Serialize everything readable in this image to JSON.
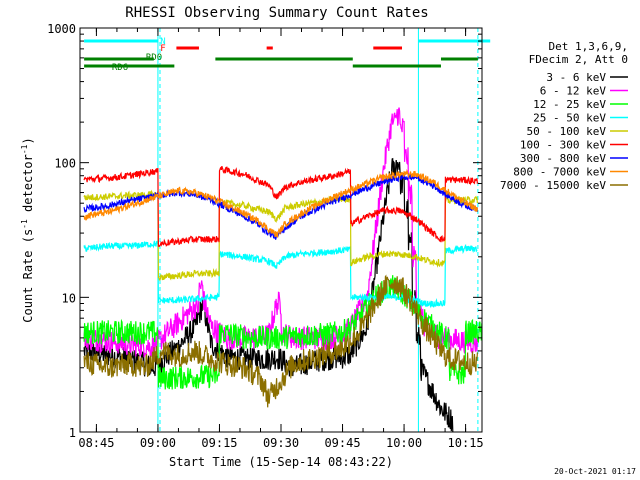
{
  "chart_data": {
    "type": "line",
    "title": "RHESSI Observing Summary Count Rates",
    "xlabel": "Start Time (15-Sep-14 08:43:22)",
    "ylabel_main": "Count Rate (s",
    "ylabel_sup1": "-1",
    "ylabel_mid": " detector",
    "ylabel_sup2": "-1",
    "ylabel_end": ")",
    "yscale": "log",
    "ylim": [
      1,
      1000
    ],
    "xlim_minutes": [
      -2,
      96
    ],
    "x_ticks": [
      {
        "label": "08:45",
        "minute": 2
      },
      {
        "label": "09:00",
        "minute": 17
      },
      {
        "label": "09:15",
        "minute": 32
      },
      {
        "label": "09:30",
        "minute": 47
      },
      {
        "label": "09:45",
        "minute": 62
      },
      {
        "label": "10:00",
        "minute": 77
      },
      {
        "label": "10:15",
        "minute": 92
      }
    ],
    "y_ticks": [
      {
        "label": "1",
        "value": 1
      },
      {
        "label": "10",
        "value": 10
      },
      {
        "label": "100",
        "value": 100
      },
      {
        "label": "1000",
        "value": 1000
      }
    ],
    "footer_date": "20-Oct-2021 01:17",
    "legend_header": [
      "Det 1,3,6,9,",
      "FDecim 2, Att 0"
    ],
    "flag_labels": {
      "night": "N",
      "flare": "F",
      "rd0": "RD0",
      "rd6": "RD6"
    },
    "flag_bars": {
      "night": [
        [
          -1,
          17
        ],
        [
          80.5,
          98
        ]
      ],
      "flare": [
        [
          21.5,
          27
        ],
        [
          43.5,
          45
        ],
        [
          69.5,
          76.5
        ]
      ],
      "rd0": [
        [
          -1,
          16
        ],
        [
          31,
          64.5
        ],
        [
          86,
          95
        ]
      ],
      "rd6": [
        [
          -1,
          21
        ],
        [
          64.5,
          86
        ]
      ]
    },
    "night_lines": [
      17,
      80.5
    ],
    "saa_lines": [
      17.5,
      95
    ],
    "series": [
      {
        "name": "3 - 6 keV",
        "color": "#000000",
        "points": [
          [
            -1,
            4
          ],
          [
            10,
            3.5
          ],
          [
            16,
            3
          ],
          [
            18,
            3.4
          ],
          [
            22,
            4.3
          ],
          [
            26,
            6
          ],
          [
            28,
            9
          ],
          [
            30,
            4.5
          ],
          [
            34,
            3.6
          ],
          [
            40,
            3.5
          ],
          [
            44,
            3.5
          ],
          [
            46,
            3.6
          ],
          [
            50,
            3
          ],
          [
            54,
            3.3
          ],
          [
            58,
            3.5
          ],
          [
            62,
            3.6
          ],
          [
            64,
            3.8
          ],
          [
            68,
            6
          ],
          [
            70,
            15
          ],
          [
            72,
            40
          ],
          [
            74,
            90
          ],
          [
            75,
            100
          ],
          [
            76,
            70
          ],
          [
            77,
            45
          ],
          [
            78,
            25
          ],
          [
            79,
            10
          ],
          [
            80,
            5
          ],
          [
            81,
            3
          ],
          [
            84,
            2
          ],
          [
            86,
            1.5
          ],
          [
            89,
            1.2
          ]
        ]
      },
      {
        "name": "6 - 12 keV",
        "color": "#ff00ff",
        "points": [
          [
            -1,
            5
          ],
          [
            10,
            4.5
          ],
          [
            16,
            4.3
          ],
          [
            18,
            5
          ],
          [
            22,
            6.5
          ],
          [
            26,
            8.5
          ],
          [
            27,
            12
          ],
          [
            28,
            10
          ],
          [
            30,
            6
          ],
          [
            34,
            5
          ],
          [
            40,
            5
          ],
          [
            44,
            5.2
          ],
          [
            46,
            9
          ],
          [
            47,
            5.5
          ],
          [
            50,
            5
          ],
          [
            58,
            5
          ],
          [
            62,
            5.2
          ],
          [
            64,
            6
          ],
          [
            68,
            10
          ],
          [
            70,
            30
          ],
          [
            72,
            90
          ],
          [
            74,
            200
          ],
          [
            75,
            230
          ],
          [
            76,
            180
          ],
          [
            77,
            110
          ],
          [
            78,
            60
          ],
          [
            79,
            20
          ],
          [
            80,
            10
          ],
          [
            82,
            6
          ],
          [
            86,
            5
          ],
          [
            92,
            4.7
          ],
          [
            95,
            4.6
          ]
        ]
      },
      {
        "name": "12 - 25 keV",
        "color": "#00ff00",
        "points": [
          [
            -1,
            5.5
          ],
          [
            16,
            5.5
          ],
          [
            17,
            2.5
          ],
          [
            31,
            2.6
          ],
          [
            32,
            5.5
          ],
          [
            40,
            5
          ],
          [
            46,
            5
          ],
          [
            52,
            5.2
          ],
          [
            58,
            5.3
          ],
          [
            62,
            5.5
          ],
          [
            64,
            6
          ],
          [
            66,
            7
          ],
          [
            68,
            8.5
          ],
          [
            70,
            10
          ],
          [
            72,
            11
          ],
          [
            74,
            12
          ],
          [
            76,
            11
          ],
          [
            78,
            10
          ],
          [
            80,
            8
          ],
          [
            84,
            6
          ],
          [
            87,
            5
          ],
          [
            88,
            2.8
          ],
          [
            91,
            2.7
          ],
          [
            92,
            5.5
          ],
          [
            96,
            5.5
          ]
        ]
      },
      {
        "name": "25 - 50 keV",
        "color": "#00ffff",
        "points": [
          [
            -1,
            23
          ],
          [
            5,
            24
          ],
          [
            10,
            24
          ],
          [
            16,
            25
          ],
          [
            17,
            9.5
          ],
          [
            22,
            9.5
          ],
          [
            31,
            10
          ],
          [
            32,
            21
          ],
          [
            38,
            20
          ],
          [
            44,
            18.5
          ],
          [
            46,
            17
          ],
          [
            48,
            20
          ],
          [
            52,
            21
          ],
          [
            56,
            21.5
          ],
          [
            60,
            22
          ],
          [
            63,
            22.5
          ],
          [
            64,
            10
          ],
          [
            70,
            10
          ],
          [
            76,
            10
          ],
          [
            80,
            9.5
          ],
          [
            82,
            9
          ],
          [
            86,
            9
          ],
          [
            87,
            22
          ],
          [
            92,
            23
          ],
          [
            95,
            23
          ]
        ]
      },
      {
        "name": "50 - 100 keV",
        "color": "#cccc00",
        "points": [
          [
            -1,
            55
          ],
          [
            5,
            56
          ],
          [
            10,
            57
          ],
          [
            16,
            58
          ],
          [
            17,
            14
          ],
          [
            22,
            14.5
          ],
          [
            26,
            15
          ],
          [
            31,
            15
          ],
          [
            32,
            51
          ],
          [
            38,
            48
          ],
          [
            44,
            43
          ],
          [
            46,
            38
          ],
          [
            48,
            46
          ],
          [
            52,
            49
          ],
          [
            56,
            51
          ],
          [
            60,
            53
          ],
          [
            63,
            54
          ],
          [
            64,
            18
          ],
          [
            68,
            20
          ],
          [
            72,
            21
          ],
          [
            76,
            21
          ],
          [
            80,
            20
          ],
          [
            82,
            19
          ],
          [
            86,
            18
          ],
          [
            87,
            52
          ],
          [
            92,
            53
          ],
          [
            95,
            53
          ]
        ]
      },
      {
        "name": "100 - 300 keV",
        "color": "#ff0000",
        "points": [
          [
            -1,
            75
          ],
          [
            5,
            77
          ],
          [
            10,
            80
          ],
          [
            16,
            86
          ],
          [
            17,
            25
          ],
          [
            22,
            26
          ],
          [
            26,
            27
          ],
          [
            31,
            27
          ],
          [
            32,
            90
          ],
          [
            38,
            82
          ],
          [
            44,
            68
          ],
          [
            46,
            55
          ],
          [
            48,
            66
          ],
          [
            52,
            72
          ],
          [
            56,
            76
          ],
          [
            60,
            80
          ],
          [
            63,
            85
          ],
          [
            64,
            35
          ],
          [
            68,
            40
          ],
          [
            72,
            44
          ],
          [
            76,
            44
          ],
          [
            80,
            38
          ],
          [
            84,
            30
          ],
          [
            86,
            27
          ],
          [
            87,
            75
          ],
          [
            92,
            74
          ],
          [
            95,
            73
          ]
        ]
      },
      {
        "name": "300 - 800 keV",
        "color": "#0000ff",
        "points": [
          [
            -1,
            45
          ],
          [
            5,
            48
          ],
          [
            10,
            52
          ],
          [
            16,
            56
          ],
          [
            22,
            60
          ],
          [
            26,
            58
          ],
          [
            30,
            53
          ],
          [
            34,
            46
          ],
          [
            38,
            40
          ],
          [
            42,
            34
          ],
          [
            44,
            30
          ],
          [
            46,
            28
          ],
          [
            48,
            33
          ],
          [
            52,
            40
          ],
          [
            56,
            46
          ],
          [
            60,
            52
          ],
          [
            64,
            58
          ],
          [
            68,
            65
          ],
          [
            72,
            72
          ],
          [
            76,
            78
          ],
          [
            80,
            78
          ],
          [
            84,
            68
          ],
          [
            88,
            56
          ],
          [
            92,
            48
          ],
          [
            95,
            45
          ]
        ]
      },
      {
        "name": "800 - 7000 keV",
        "color": "#ff8800",
        "points": [
          [
            -1,
            40
          ],
          [
            5,
            43
          ],
          [
            10,
            48
          ],
          [
            16,
            55
          ],
          [
            22,
            62
          ],
          [
            26,
            60
          ],
          [
            30,
            55
          ],
          [
            34,
            48
          ],
          [
            38,
            42
          ],
          [
            42,
            36
          ],
          [
            44,
            32
          ],
          [
            46,
            29
          ],
          [
            48,
            35
          ],
          [
            52,
            42
          ],
          [
            56,
            49
          ],
          [
            60,
            56
          ],
          [
            64,
            63
          ],
          [
            68,
            70
          ],
          [
            72,
            78
          ],
          [
            76,
            82
          ],
          [
            80,
            82
          ],
          [
            84,
            72
          ],
          [
            88,
            60
          ],
          [
            92,
            50
          ],
          [
            95,
            45
          ]
        ]
      },
      {
        "name": "7000 - 15000 keV",
        "color": "#8b6f00",
        "points": [
          [
            -1,
            3.3
          ],
          [
            5,
            3
          ],
          [
            10,
            3.2
          ],
          [
            14,
            3
          ],
          [
            16,
            3.5
          ],
          [
            18,
            4
          ],
          [
            22,
            3.7
          ],
          [
            26,
            4
          ],
          [
            30,
            3.5
          ],
          [
            34,
            3.2
          ],
          [
            38,
            3
          ],
          [
            42,
            2.5
          ],
          [
            44,
            1.8
          ],
          [
            46,
            2.2
          ],
          [
            50,
            3.2
          ],
          [
            54,
            3.5
          ],
          [
            58,
            3.8
          ],
          [
            62,
            4.2
          ],
          [
            66,
            5.5
          ],
          [
            68,
            7
          ],
          [
            70,
            9
          ],
          [
            72,
            11.5
          ],
          [
            74,
            13
          ],
          [
            76,
            12.5
          ],
          [
            78,
            10
          ],
          [
            80,
            8
          ],
          [
            82,
            6
          ],
          [
            84,
            5
          ],
          [
            86,
            4
          ],
          [
            88,
            3.5
          ],
          [
            92,
            3.3
          ],
          [
            95,
            3.2
          ]
        ]
      }
    ]
  }
}
